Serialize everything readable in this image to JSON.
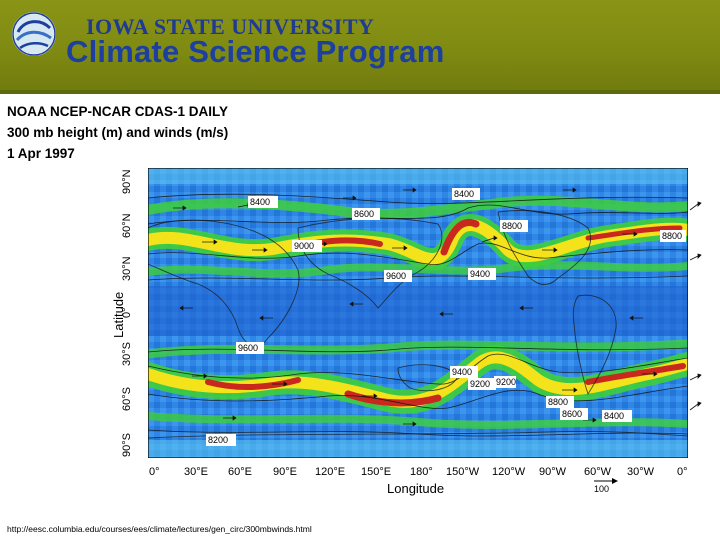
{
  "header": {
    "university": "IOWA STATE UNIVERSITY",
    "program": "Climate Science Program",
    "logo_icon": "swirl-globe-icon"
  },
  "caption": {
    "line1": "NOAA NCEP-NCAR CDAS-1 DAILY",
    "line2": "300 mb height (m) and winds (m/s)",
    "line3": "1 Apr 1997"
  },
  "map": {
    "y_axis_title": "Latitude",
    "x_axis_title": "Longitude",
    "lat_ticks": [
      "90°N",
      "60°N",
      "30°N",
      "0°",
      "30°S",
      "60°S",
      "90°S"
    ],
    "lon_ticks": [
      "0°",
      "30°E",
      "60°E",
      "90°E",
      "120°E",
      "150°E",
      "180°",
      "150°W",
      "120°W",
      "90°W",
      "60°W",
      "30°W",
      "0°"
    ],
    "contour_labels": [
      "8400",
      "8400",
      "8600",
      "8800",
      "9000",
      "9600",
      "9400",
      "8800",
      "9600",
      "9400",
      "9200",
      "9200",
      "8800",
      "8600",
      "8400",
      "8200"
    ],
    "scale_label": "100",
    "colors": {
      "background": "#2a7fe0",
      "jet_green": "#3ecf3a",
      "jet_yellow": "#f4e21a",
      "jet_red": "#c8281e"
    }
  },
  "footer": {
    "source_url": "http://eesc.columbia.edu/courses/ees/climate/lectures/gen_circ/300mbwinds.html"
  }
}
